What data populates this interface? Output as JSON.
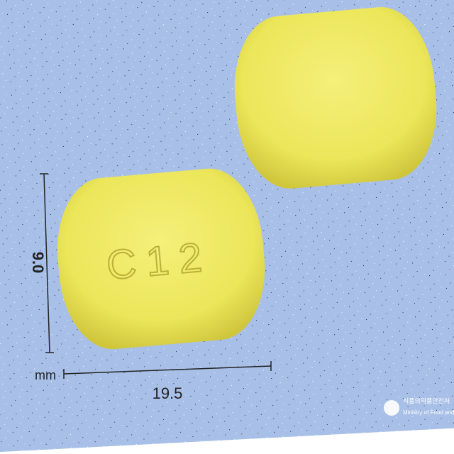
{
  "pill": {
    "imprint": "C12"
  },
  "dimensions": {
    "height": "9.0",
    "width": "19.5",
    "unit": "mm"
  },
  "logo": {
    "korean": "식품의약품안전처",
    "english": "Ministry of Food and Drug"
  }
}
